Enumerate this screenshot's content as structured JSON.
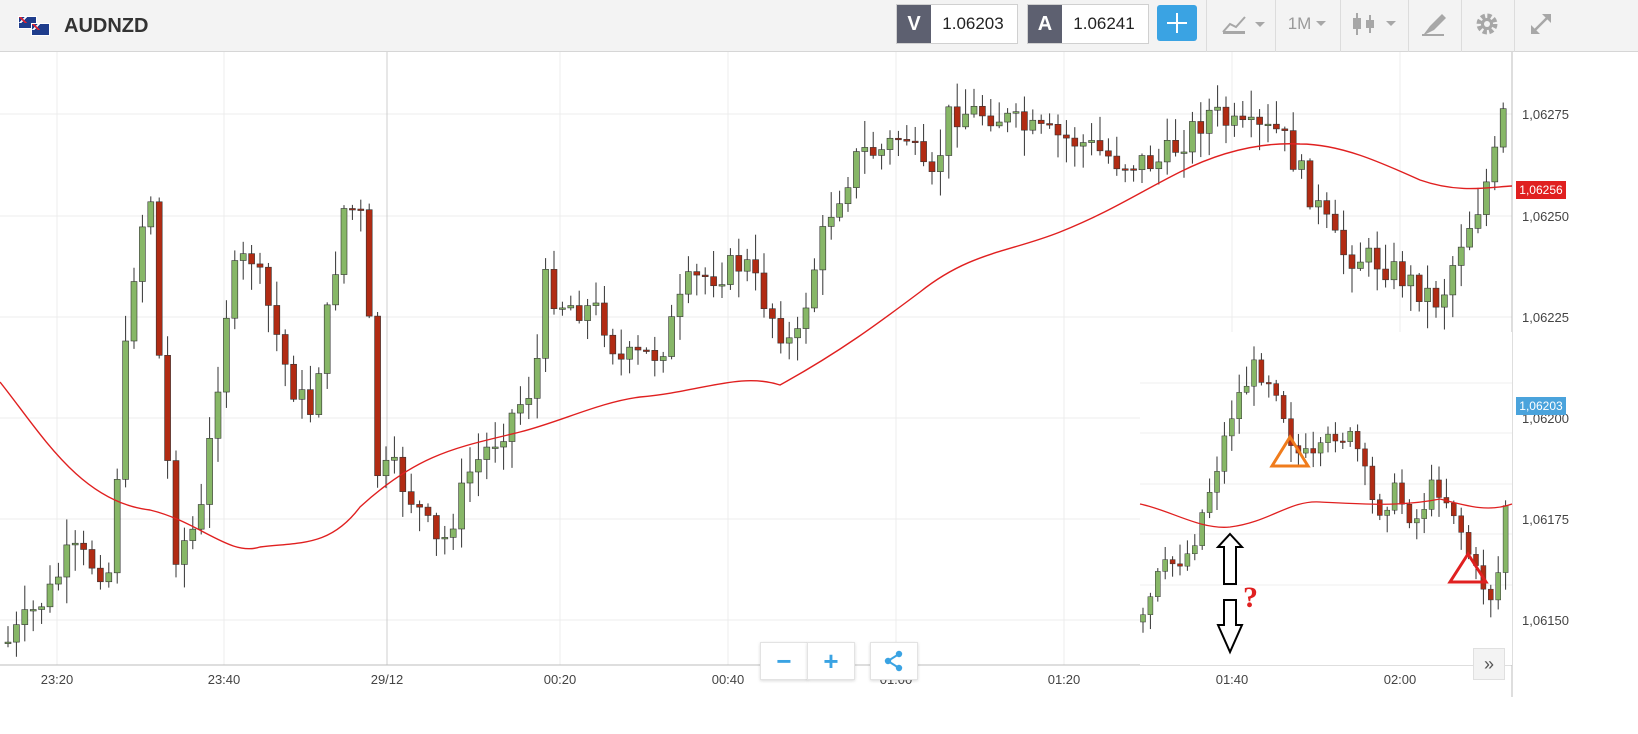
{
  "header": {
    "symbol": "AUDNZD",
    "sell_tag": "V",
    "sell_price": "1.06203",
    "buy_tag": "A",
    "buy_price": "1.06241",
    "timeframe": "1M"
  },
  "toolbar_icons": [
    "crosshair-icon",
    "chart-type-icon",
    "timeframe-dropdown",
    "candles-icon",
    "draw-tools-icon",
    "gear-icon",
    "fullscreen-icon"
  ],
  "colors": {
    "bull": "#87b767",
    "bear": "#b12b13",
    "ma": "#e02020",
    "accent": "#3aa3e3",
    "last_price_label": "#e02020",
    "current_price_label": "#4aa3dc"
  },
  "y_axis": {
    "ticks": [
      "1,06275",
      "1,06250",
      "1,06225",
      "1,06200",
      "1,06175",
      "1,06150"
    ],
    "last_close_label": "1,06256",
    "current_price_label": "1,06203"
  },
  "x_axis": {
    "ticks": [
      "23:20",
      "23:40",
      "29/12",
      "00:20",
      "00:40",
      "01:00",
      "01:20",
      "01:40",
      "02:00"
    ]
  },
  "zoom": {
    "minus": "−",
    "plus": "+"
  },
  "annotation": {
    "question": "?"
  },
  "chart_data": {
    "type": "candlestick",
    "instrument": "AUDNZD",
    "timeframe": "1M",
    "ylim": [
      1.0614,
      1.0629
    ],
    "moving_average": "red line",
    "inset": "smaller zoomed candlestick chart overlaid at bottom-right with up/down arrows, question mark, orange and red triangles"
  }
}
